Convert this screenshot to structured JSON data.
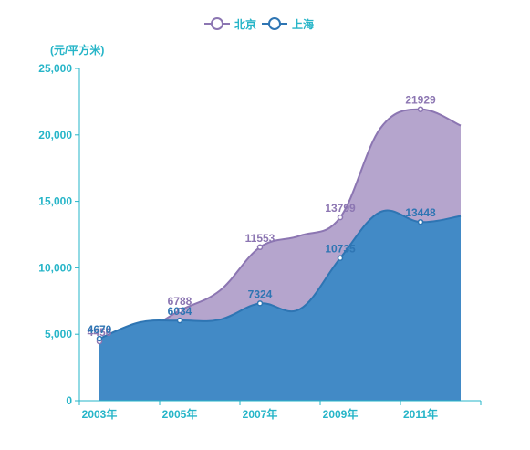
{
  "chart_data": {
    "type": "area",
    "ylabel": "(元/平方米)",
    "ylim": [
      0,
      25000
    ],
    "yticks": [
      0,
      5000,
      10000,
      15000,
      20000,
      25000
    ],
    "ytick_labels": [
      "0",
      "5,000",
      "10,000",
      "15,000",
      "20,000",
      "25,000"
    ],
    "x": [
      2003,
      2004,
      2005,
      2006,
      2007,
      2008,
      2009,
      2010,
      2011,
      2012
    ],
    "xtick_labels": [
      "2003年",
      "2005年",
      "2007年",
      "2009年",
      "2011年"
    ],
    "xtick_years": [
      2003,
      2005,
      2007,
      2009,
      2011
    ],
    "legend_position": "top-center",
    "grid": false,
    "series": [
      {
        "name": "北京",
        "color": "#8c76b2",
        "fill": "#b5a5cd",
        "values": [
          4456,
          5053,
          6788,
          8280,
          11553,
          12418,
          13799,
          20500,
          21929,
          20700
        ],
        "labels": [
          "4456",
          "",
          "6788",
          "",
          "11553",
          "",
          "13799",
          "",
          "21929",
          ""
        ]
      },
      {
        "name": "上海",
        "color": "#2e75b3",
        "fill": "#428ac6",
        "values": [
          4670,
          5900,
          6034,
          6100,
          7324,
          6900,
          10735,
          14200,
          13448,
          13900
        ],
        "labels": [
          "4670",
          "",
          "6034",
          "",
          "7324",
          "",
          "10735",
          "",
          "13448",
          ""
        ]
      }
    ]
  }
}
